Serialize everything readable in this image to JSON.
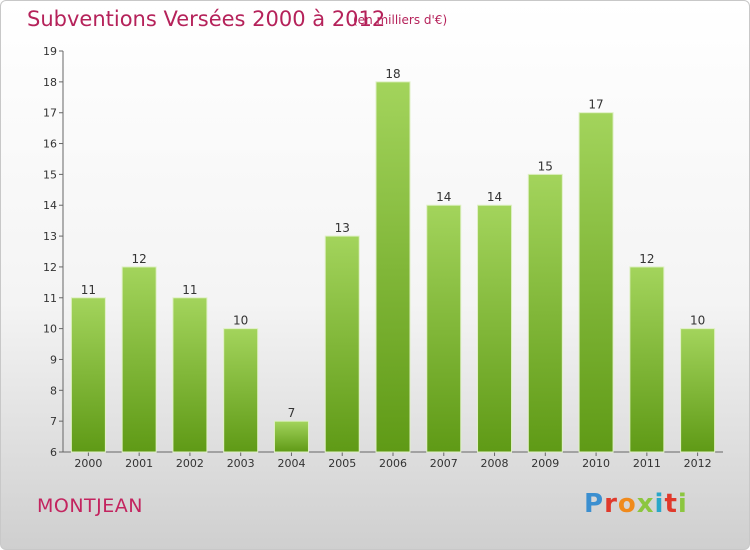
{
  "header": {
    "title": "Subventions Versées 2000 à 2012",
    "unit": "(en milliers d'€)"
  },
  "commune": "MONTJEAN",
  "logo": {
    "text": "Proxiti",
    "letter_colors": [
      "#3b8fd0",
      "#e0392b",
      "#f08a1c",
      "#8cc63f",
      "#2aa7c9",
      "#e0392b",
      "#8cc63f"
    ]
  },
  "colors": {
    "bar_top": "#a3d45c",
    "bar_bottom": "#5f9a16",
    "bar_stroke": "#dff0c4",
    "axis": "#666666",
    "title": "#b5225a"
  },
  "chart_data": {
    "type": "bar",
    "title": "Subventions Versées 2000 à 2012",
    "subtitle": "(en milliers d'€)",
    "categories": [
      "2000",
      "2001",
      "2002",
      "2003",
      "2004",
      "2005",
      "2006",
      "2007",
      "2008",
      "2009",
      "2010",
      "2011",
      "2012"
    ],
    "values": [
      11,
      12,
      11,
      10,
      7,
      13,
      18,
      14,
      14,
      15,
      17,
      12,
      10
    ],
    "ylim": [
      6,
      19
    ],
    "yticks": [
      6,
      7,
      8,
      9,
      10,
      11,
      12,
      13,
      14,
      15,
      16,
      17,
      18,
      19
    ],
    "grid": false,
    "legend": "none"
  }
}
